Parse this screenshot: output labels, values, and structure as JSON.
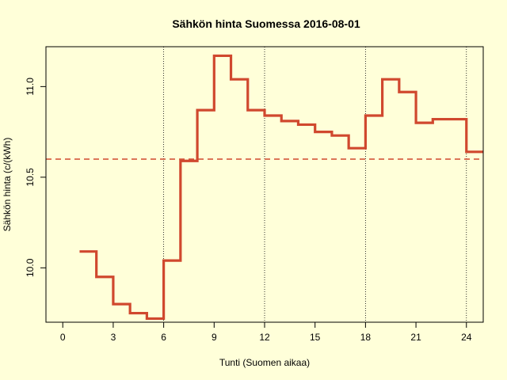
{
  "chart_data": {
    "type": "line",
    "subtype": "step",
    "title": "Sähkön hinta Suomessa 2016-08-01",
    "xlabel": "Tunti (Suomen aikaa)",
    "ylabel": "Sähkön hinta (c/(kWh)",
    "xlim": [
      -1,
      25
    ],
    "ylim": [
      9.7,
      11.22
    ],
    "x_ticks": [
      0,
      3,
      6,
      9,
      12,
      15,
      18,
      21,
      24
    ],
    "x_tick_labels": [
      "0",
      "3",
      "6",
      "9",
      "12",
      "15",
      "18",
      "21",
      "24"
    ],
    "y_ticks": [
      10.0,
      10.5,
      11.0
    ],
    "y_tick_labels": [
      "10.0",
      "10.5",
      "11.0"
    ],
    "vertical_guides": [
      6,
      12,
      18,
      24
    ],
    "mean_line": 10.6,
    "series": [
      {
        "x": [
          1,
          2,
          3,
          4,
          5,
          6,
          7,
          8,
          9,
          10,
          11,
          12,
          13,
          14,
          15,
          16,
          17,
          18,
          19,
          20,
          21,
          22,
          23,
          24
        ],
        "values": [
          10.09,
          9.95,
          9.8,
          9.75,
          9.72,
          10.04,
          10.59,
          10.87,
          11.17,
          11.04,
          10.87,
          10.84,
          10.81,
          10.79,
          10.75,
          10.73,
          10.66,
          10.84,
          11.04,
          10.97,
          10.8,
          10.82,
          10.82,
          10.64
        ]
      }
    ],
    "colors": {
      "line": "#d0482e",
      "mean": "#d0482e",
      "background": "#ffffd9"
    }
  }
}
